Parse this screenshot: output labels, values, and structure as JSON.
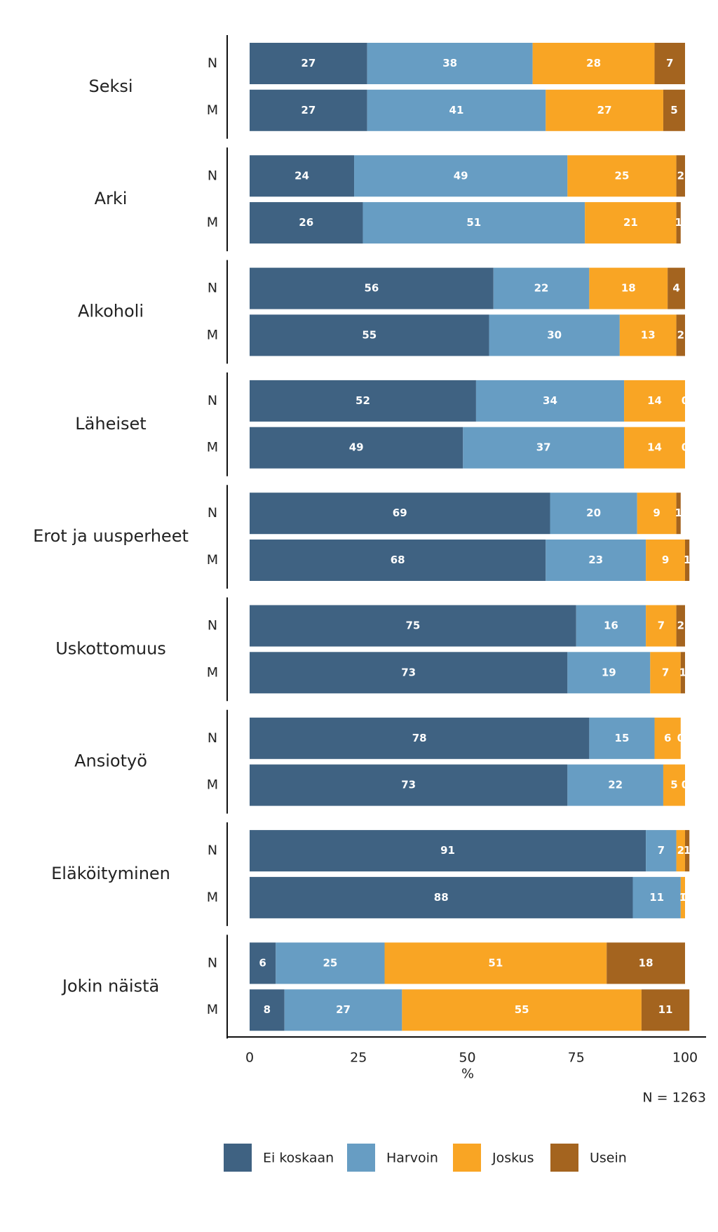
{
  "chart_data": {
    "type": "stacked-bar-horizontal",
    "categories": [
      "Seksi",
      "Arki",
      "Alkoholi",
      "Läheiset",
      "Erot ja uusperheet",
      "Uskottomuus",
      "Ansiotyö",
      "Eläköityminen",
      "Jokin näistä"
    ],
    "subcategories": [
      "N",
      "M"
    ],
    "series": [
      {
        "name": "Ei koskaan",
        "color": "#3f6282",
        "values": [
          [
            27,
            27
          ],
          [
            24,
            26
          ],
          [
            56,
            55
          ],
          [
            52,
            49
          ],
          [
            69,
            68
          ],
          [
            75,
            73
          ],
          [
            78,
            73
          ],
          [
            91,
            88
          ],
          [
            6,
            8
          ]
        ]
      },
      {
        "name": "Harvoin",
        "color": "#679dc3",
        "values": [
          [
            38,
            41
          ],
          [
            49,
            51
          ],
          [
            22,
            30
          ],
          [
            34,
            37
          ],
          [
            20,
            23
          ],
          [
            16,
            19
          ],
          [
            15,
            22
          ],
          [
            7,
            11
          ],
          [
            25,
            27
          ]
        ]
      },
      {
        "name": "Joskus",
        "color": "#f9a524",
        "values": [
          [
            28,
            27
          ],
          [
            25,
            21
          ],
          [
            18,
            13
          ],
          [
            14,
            14
          ],
          [
            9,
            9
          ],
          [
            7,
            7
          ],
          [
            6,
            5
          ],
          [
            2,
            1
          ],
          [
            51,
            55
          ]
        ]
      },
      {
        "name": "Usein",
        "color": "#a4641f",
        "values": [
          [
            7,
            5
          ],
          [
            2,
            1
          ],
          [
            4,
            2
          ],
          [
            0,
            0
          ],
          [
            1,
            1
          ],
          [
            2,
            1
          ],
          [
            0,
            0
          ],
          [
            1,
            0
          ],
          [
            18,
            11
          ]
        ]
      }
    ],
    "xlim": [
      0,
      100
    ],
    "xticks": [
      0,
      25,
      50,
      75,
      100
    ],
    "x_label": "%",
    "note": "N = 1263"
  }
}
